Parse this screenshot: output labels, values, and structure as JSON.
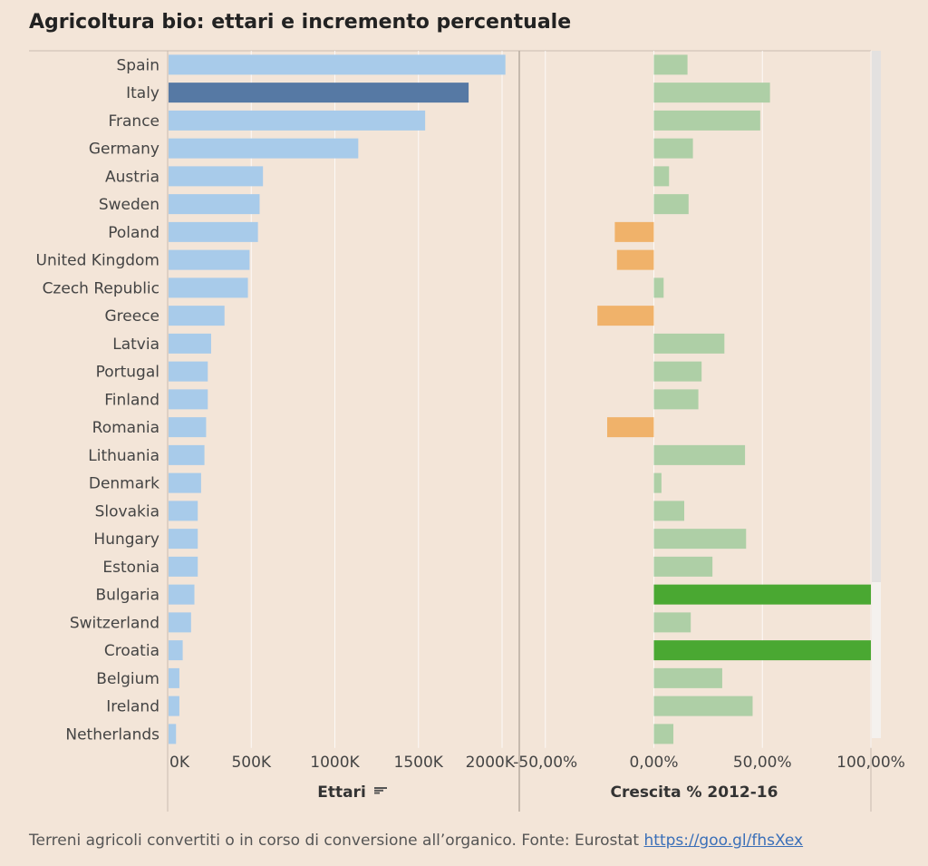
{
  "page": {
    "title": "Agricoltura bio: ettari e incremento percentuale",
    "footer_text": "Terreni agricoli convertiti o in corso di conversione all’organico. Fonte: Eurostat",
    "footer_link": "https://goo.gl/fhsXex"
  },
  "colors": {
    "bar_light_blue": "#a8cbea",
    "bar_highlight_blue": "#5679a4",
    "growth_positive": "#aecfa6",
    "growth_negative": "#f0b26a",
    "growth_extreme": "#4aa832"
  },
  "chart_data": [
    {
      "type": "bar",
      "orientation": "horizontal",
      "xlabel": "Ettari",
      "xlim": [
        0,
        2000000
      ],
      "ticks": [
        0,
        500000,
        1000000,
        1500000,
        2000000
      ],
      "tick_labels": [
        "0K",
        "500K",
        "1000K",
        "1500K",
        "2000K"
      ],
      "sorted_by": "value-desc",
      "highlight": "Italy",
      "categories": [
        "Spain",
        "Italy",
        "France",
        "Germany",
        "Austria",
        "Sweden",
        "Poland",
        "United Kingdom",
        "Czech Republic",
        "Greece",
        "Latvia",
        "Portugal",
        "Finland",
        "Romania",
        "Lithuania",
        "Denmark",
        "Slovakia",
        "Hungary",
        "Estonia",
        "Bulgaria",
        "Switzerland",
        "Croatia",
        "Belgium",
        "Ireland",
        "Netherlands"
      ],
      "values": [
        2020000,
        1800000,
        1540000,
        1140000,
        570000,
        550000,
        540000,
        490000,
        480000,
        340000,
        260000,
        240000,
        240000,
        230000,
        220000,
        200000,
        180000,
        180000,
        180000,
        160000,
        140000,
        90000,
        70000,
        70000,
        50000
      ]
    },
    {
      "type": "bar",
      "orientation": "horizontal",
      "xlabel": "Crescita % 2012-16",
      "xlim": [
        -0.62,
        1.0
      ],
      "ticks": [
        -0.5,
        0,
        0.5,
        1.0
      ],
      "tick_labels": [
        "-50,00%",
        "0,00%",
        "50,00%",
        "100,00%"
      ],
      "categories": [
        "Spain",
        "Italy",
        "France",
        "Germany",
        "Austria",
        "Sweden",
        "Poland",
        "United Kingdom",
        "Czech Republic",
        "Greece",
        "Latvia",
        "Portugal",
        "Finland",
        "Romania",
        "Lithuania",
        "Denmark",
        "Slovakia",
        "Hungary",
        "Estonia",
        "Bulgaria",
        "Switzerland",
        "Croatia",
        "Belgium",
        "Ireland",
        "Netherlands"
      ],
      "values": [
        0.155,
        0.535,
        0.49,
        0.18,
        0.07,
        0.16,
        -0.18,
        -0.17,
        0.045,
        -0.26,
        0.325,
        0.22,
        0.205,
        -0.215,
        0.42,
        0.035,
        0.14,
        0.425,
        0.27,
        1.0,
        0.17,
        1.0,
        0.315,
        0.455,
        0.09
      ]
    }
  ]
}
